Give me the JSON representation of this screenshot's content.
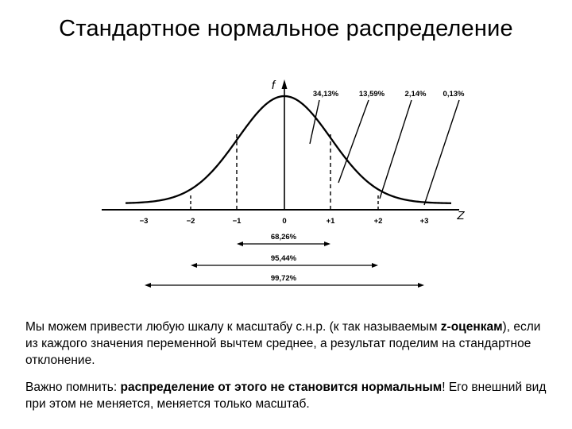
{
  "title": "Стандартное нормальное распределение",
  "chart": {
    "y_label": "f",
    "x_label": "Z",
    "x_ticks": [
      "−3",
      "−2",
      "−1",
      "0",
      "+1",
      "+2",
      "+3"
    ],
    "segment_percentages": [
      "34,13%",
      "13,59%",
      "2,14%",
      "0,13%"
    ],
    "ranges": [
      {
        "label": "68,26%",
        "from": -1,
        "to": 1
      },
      {
        "label": "95,44%",
        "from": -2,
        "to": 2
      },
      {
        "label": "99,72%",
        "from": -3,
        "to": 3
      }
    ]
  },
  "paragraph1": {
    "part1": "Мы можем привести любую шкалу к масштабу с.н.р. (к так называемым ",
    "bold": "z-оценкам",
    "part2": "), если из каждого значения переменной вычтем среднее, а результат поделим на стандартное отклонение."
  },
  "paragraph2": {
    "part1": "Важно помнить: ",
    "bold": "распределение от этого не становится нормальным",
    "part2": "! Его внешний вид при этом не меняется, меняется только масштаб."
  }
}
